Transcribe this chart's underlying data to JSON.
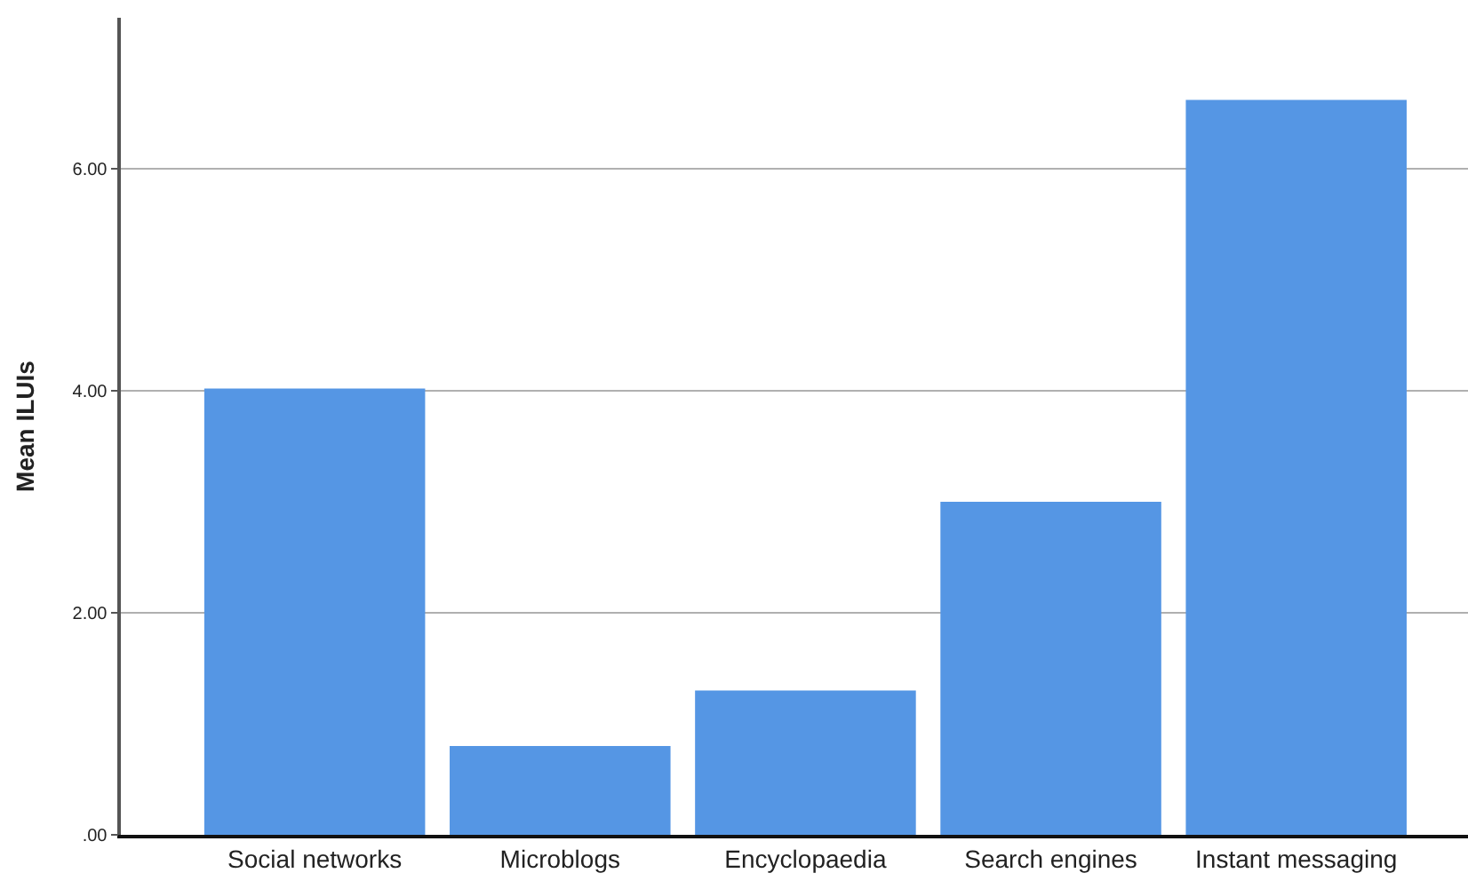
{
  "chart_data": {
    "type": "bar",
    "ylabel": "Mean ILUIs",
    "categories": [
      "Social networks",
      "Microblogs",
      "Encyclopaedia",
      "Search engines",
      "Instant messaging"
    ],
    "values": [
      4.02,
      0.8,
      1.3,
      3.0,
      6.62
    ],
    "color": "#5596e4",
    "ylim": [
      0,
      7.36
    ],
    "yticks": [
      {
        "value": 0,
        "label": ".00"
      },
      {
        "value": 2,
        "label": "2.00"
      },
      {
        "value": 4,
        "label": "4.00"
      },
      {
        "value": 6,
        "label": "6.00"
      }
    ],
    "grid": "y"
  }
}
